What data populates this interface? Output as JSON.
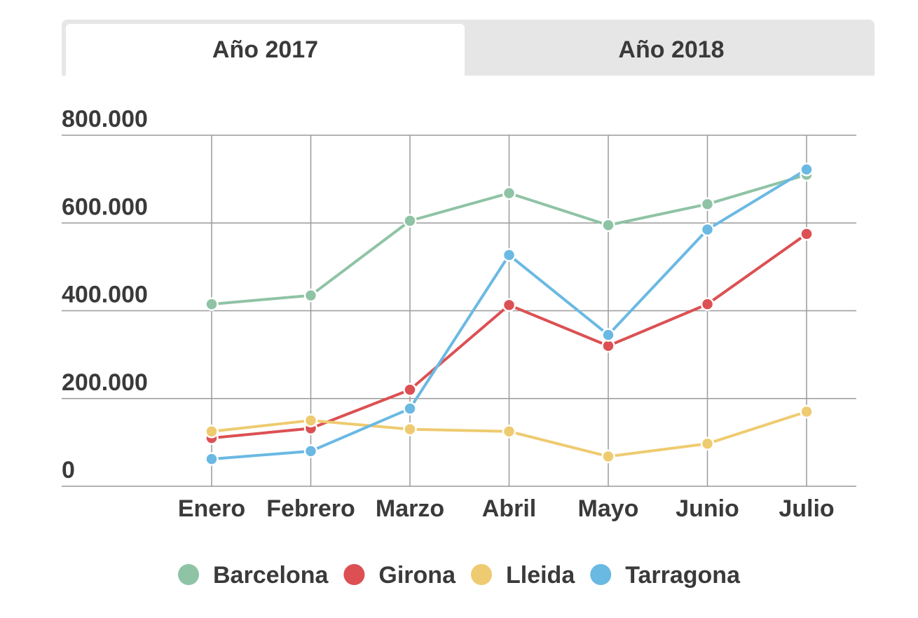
{
  "tabs": [
    {
      "label": "Año 2017",
      "active": true
    },
    {
      "label": "Año 2018",
      "active": false
    }
  ],
  "chart_data": {
    "type": "line",
    "title": "",
    "xlabel": "",
    "ylabel": "",
    "categories": [
      "Enero",
      "Febrero",
      "Marzo",
      "Abril",
      "Mayo",
      "Junio",
      "Julio"
    ],
    "ylim": [
      0,
      800000
    ],
    "yticks": [
      0,
      200000,
      400000,
      600000,
      800000
    ],
    "ytick_labels": [
      "0",
      "200.000",
      "400.000",
      "600.000",
      "800.000"
    ],
    "grid": true,
    "legend_position": "bottom",
    "series": [
      {
        "name": "Barcelona",
        "color": "#8fc3a5",
        "values": [
          415000,
          435000,
          605000,
          668000,
          595000,
          643000,
          710000
        ]
      },
      {
        "name": "Girona",
        "color": "#dc5053",
        "values": [
          110000,
          132000,
          220000,
          413000,
          320000,
          415000,
          575000
        ]
      },
      {
        "name": "Lleida",
        "color": "#eecb70",
        "values": [
          125000,
          150000,
          130000,
          125000,
          68000,
          97000,
          170000
        ]
      },
      {
        "name": "Tarragona",
        "color": "#6ab9e3",
        "values": [
          62000,
          80000,
          177000,
          527000,
          345000,
          585000,
          722000
        ]
      }
    ]
  }
}
